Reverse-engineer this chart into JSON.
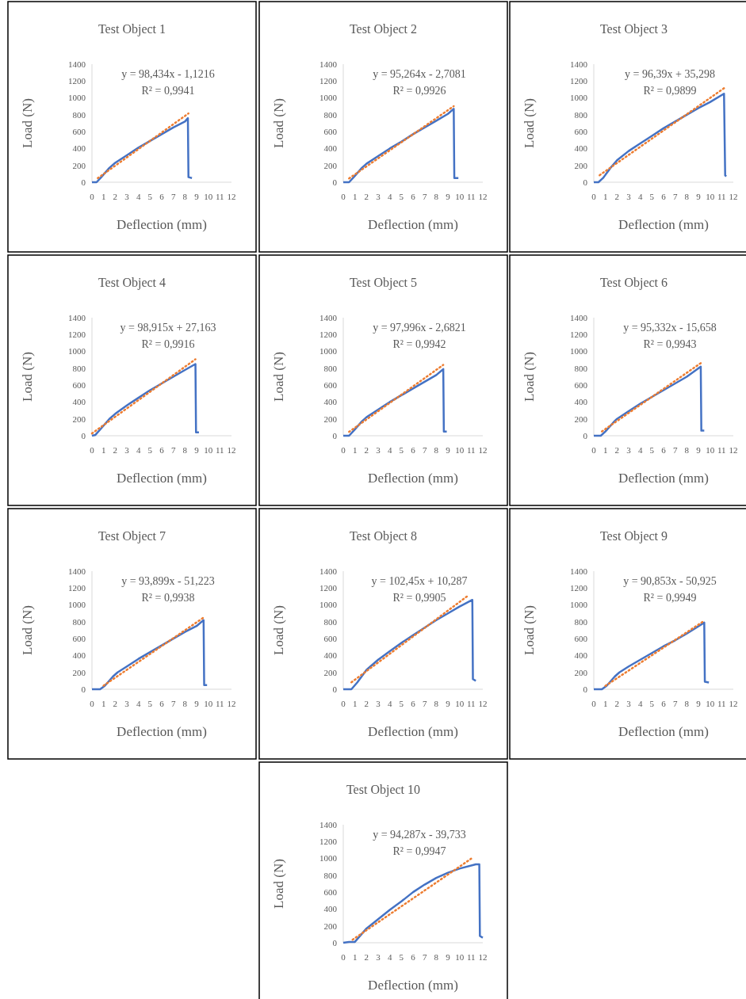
{
  "chart_data": [
    {
      "type": "line",
      "title": "Test Object 1",
      "xlabel": "Deflection (mm)",
      "ylabel": "Load (N)",
      "xlim": [
        0,
        12
      ],
      "xticks": [
        0,
        1,
        2,
        3,
        4,
        5,
        6,
        7,
        8,
        9,
        10,
        11,
        12
      ],
      "ylim": [
        0,
        1400
      ],
      "yticks": [
        0,
        200,
        400,
        600,
        800,
        1000,
        1200,
        1400
      ],
      "annotations": [
        "y = 98,434x - 1,1216",
        "R² = 0,9941"
      ],
      "series": [
        {
          "color": "#4472c4",
          "line_style": "solid",
          "x": [
            0,
            0.4,
            0.8,
            1.5,
            2,
            3,
            4,
            5,
            6,
            7,
            8,
            8.25,
            8.3,
            8.6
          ],
          "values": [
            0,
            0,
            60,
            170,
            230,
            320,
            410,
            490,
            570,
            650,
            720,
            760,
            60,
            50
          ]
        },
        {
          "color": "#ed7d31",
          "line_style": "dotted",
          "x": [
            0.5,
            8.3
          ],
          "values": [
            48,
            816
          ]
        }
      ]
    },
    {
      "type": "line",
      "title": "Test Object 2",
      "xlabel": "Deflection (mm)",
      "ylabel": "Load (N)",
      "xlim": [
        0,
        12
      ],
      "xticks": [
        0,
        1,
        2,
        3,
        4,
        5,
        6,
        7,
        8,
        9,
        10,
        11,
        12
      ],
      "ylim": [
        0,
        1400
      ],
      "yticks": [
        0,
        200,
        400,
        600,
        800,
        1000,
        1200,
        1400
      ],
      "annotations": [
        "y = 95,264x - 2,7081",
        "R² = 0,9926"
      ],
      "series": [
        {
          "color": "#4472c4",
          "line_style": "solid",
          "x": [
            0,
            0.5,
            0.9,
            1.6,
            2,
            3,
            4,
            5,
            6,
            7,
            8,
            9,
            9.5,
            9.55,
            9.9
          ],
          "values": [
            0,
            0,
            60,
            170,
            220,
            310,
            400,
            480,
            570,
            650,
            730,
            810,
            870,
            50,
            50
          ]
        },
        {
          "color": "#ed7d31",
          "line_style": "dotted",
          "x": [
            0.5,
            9.5
          ],
          "values": [
            45,
            902
          ]
        }
      ]
    },
    {
      "type": "line",
      "title": "Test Object 3",
      "xlabel": "Deflection (mm)",
      "ylabel": "Load (N)",
      "xlim": [
        0,
        12
      ],
      "xticks": [
        0,
        1,
        2,
        3,
        4,
        5,
        6,
        7,
        8,
        9,
        10,
        11,
        12
      ],
      "ylim": [
        0,
        1400
      ],
      "yticks": [
        0,
        200,
        400,
        600,
        800,
        1000,
        1200,
        1400
      ],
      "annotations": [
        "y = 96,39x + 35,298",
        "R² = 0,9899"
      ],
      "series": [
        {
          "color": "#4472c4",
          "line_style": "solid",
          "x": [
            0,
            0.4,
            0.8,
            1.5,
            2,
            3,
            4,
            5,
            6,
            7,
            8,
            9,
            10,
            11.2,
            11.3,
            11.4
          ],
          "values": [
            0,
            0,
            50,
            180,
            260,
            370,
            460,
            550,
            640,
            720,
            800,
            880,
            950,
            1050,
            80,
            70
          ]
        },
        {
          "color": "#ed7d31",
          "line_style": "dotted",
          "x": [
            0.5,
            11.2
          ],
          "values": [
            83,
            1115
          ]
        }
      ]
    },
    {
      "type": "line",
      "title": "Test Object 4",
      "xlabel": "Deflection (mm)",
      "ylabel": "Load (N)",
      "xlim": [
        0,
        12
      ],
      "xticks": [
        0,
        1,
        2,
        3,
        4,
        5,
        6,
        7,
        8,
        9,
        10,
        11,
        12
      ],
      "ylim": [
        0,
        1400
      ],
      "yticks": [
        0,
        200,
        400,
        600,
        800,
        1000,
        1200,
        1400
      ],
      "annotations": [
        "y = 98,915x + 27,163",
        "R² = 0,9916"
      ],
      "series": [
        {
          "color": "#4472c4",
          "line_style": "solid",
          "x": [
            0,
            0.3,
            1,
            1.5,
            2,
            3,
            4,
            5,
            6,
            7,
            8,
            8.9,
            8.95,
            9.2
          ],
          "values": [
            0,
            10,
            120,
            200,
            260,
            360,
            450,
            540,
            620,
            700,
            780,
            850,
            40,
            40
          ]
        },
        {
          "color": "#ed7d31",
          "line_style": "dotted",
          "x": [
            0,
            8.9
          ],
          "values": [
            27,
            907
          ]
        }
      ]
    },
    {
      "type": "line",
      "title": "Test Object 5",
      "xlabel": "Deflection (mm)",
      "ylabel": "Load (N)",
      "xlim": [
        0,
        12
      ],
      "xticks": [
        0,
        1,
        2,
        3,
        4,
        5,
        6,
        7,
        8,
        9,
        10,
        11,
        12
      ],
      "ylim": [
        0,
        1400
      ],
      "yticks": [
        0,
        200,
        400,
        600,
        800,
        1000,
        1200,
        1400
      ],
      "annotations": [
        "y = 97,996x - 2,6821",
        "R² = 0,9942"
      ],
      "series": [
        {
          "color": "#4472c4",
          "line_style": "solid",
          "x": [
            0,
            0.5,
            0.9,
            1.6,
            2,
            3,
            4,
            5,
            6,
            7,
            8,
            8.6,
            8.65,
            8.9
          ],
          "values": [
            0,
            0,
            60,
            170,
            220,
            310,
            400,
            480,
            560,
            640,
            720,
            790,
            50,
            50
          ]
        },
        {
          "color": "#ed7d31",
          "line_style": "dotted",
          "x": [
            0.5,
            8.6
          ],
          "values": [
            46,
            840
          ]
        }
      ]
    },
    {
      "type": "line",
      "title": "Test Object 6",
      "xlabel": "Deflection (mm)",
      "ylabel": "Load (N)",
      "xlim": [
        0,
        12
      ],
      "xticks": [
        0,
        1,
        2,
        3,
        4,
        5,
        6,
        7,
        8,
        9,
        10,
        11,
        12
      ],
      "ylim": [
        0,
        1400
      ],
      "yticks": [
        0,
        200,
        400,
        600,
        800,
        1000,
        1200,
        1400
      ],
      "annotations": [
        "y = 95,332x - 15,658",
        "R² = 0,9943"
      ],
      "series": [
        {
          "color": "#4472c4",
          "line_style": "solid",
          "x": [
            0,
            0.6,
            1,
            1.7,
            2,
            3,
            4,
            5,
            6,
            7,
            8,
            9.2,
            9.25,
            9.5
          ],
          "values": [
            0,
            0,
            50,
            160,
            200,
            290,
            380,
            460,
            540,
            620,
            700,
            820,
            60,
            60
          ]
        },
        {
          "color": "#ed7d31",
          "line_style": "dotted",
          "x": [
            0.7,
            9.2
          ],
          "values": [
            51,
            861
          ]
        }
      ]
    },
    {
      "type": "line",
      "title": "Test Object 7",
      "xlabel": "Deflection (mm)",
      "ylabel": "Load (N)",
      "xlim": [
        0,
        12
      ],
      "xticks": [
        0,
        1,
        2,
        3,
        4,
        5,
        6,
        7,
        8,
        9,
        10,
        11,
        12
      ],
      "ylim": [
        0,
        1400
      ],
      "yticks": [
        0,
        200,
        400,
        600,
        800,
        1000,
        1200,
        1400
      ],
      "annotations": [
        "y = 93,899x - 51,223",
        "R² = 0,9938"
      ],
      "series": [
        {
          "color": "#4472c4",
          "line_style": "solid",
          "x": [
            0,
            0.7,
            1.1,
            1.8,
            2.2,
            3,
            4,
            5,
            6,
            7,
            8,
            9,
            9.6,
            9.65,
            9.9
          ],
          "values": [
            0,
            0,
            40,
            150,
            200,
            270,
            360,
            440,
            520,
            600,
            680,
            750,
            820,
            50,
            50
          ]
        },
        {
          "color": "#ed7d31",
          "line_style": "dotted",
          "x": [
            1,
            9.6
          ],
          "values": [
            43,
            850
          ]
        }
      ]
    },
    {
      "type": "line",
      "title": "Test Object 8",
      "xlabel": "Deflection (mm)",
      "ylabel": "Load (N)",
      "xlim": [
        0,
        12
      ],
      "xticks": [
        0,
        1,
        2,
        3,
        4,
        5,
        6,
        7,
        8,
        9,
        10,
        11,
        12
      ],
      "ylim": [
        0,
        1400
      ],
      "yticks": [
        0,
        200,
        400,
        600,
        800,
        1000,
        1200,
        1400
      ],
      "annotations": [
        "y = 102,45x + 10,287",
        "R² = 0,9905"
      ],
      "series": [
        {
          "color": "#4472c4",
          "line_style": "solid",
          "x": [
            0,
            0.7,
            1.2,
            2,
            3,
            4,
            5,
            6,
            7,
            8,
            9,
            10,
            11.1,
            11.15,
            11.4
          ],
          "values": [
            0,
            0,
            80,
            230,
            350,
            450,
            550,
            640,
            730,
            820,
            900,
            980,
            1060,
            120,
            100
          ]
        },
        {
          "color": "#ed7d31",
          "line_style": "dotted",
          "x": [
            0.7,
            10.7
          ],
          "values": [
            82,
            1107
          ]
        }
      ]
    },
    {
      "type": "line",
      "title": "Test Object 9",
      "xlabel": "Deflection (mm)",
      "ylabel": "Load (N)",
      "xlim": [
        0,
        12
      ],
      "xticks": [
        0,
        1,
        2,
        3,
        4,
        5,
        6,
        7,
        8,
        9,
        10,
        11,
        12
      ],
      "ylim": [
        0,
        1400
      ],
      "yticks": [
        0,
        200,
        400,
        600,
        800,
        1000,
        1200,
        1400
      ],
      "annotations": [
        "y = 90,853x - 50,925",
        "R² = 0,9949"
      ],
      "series": [
        {
          "color": "#4472c4",
          "line_style": "solid",
          "x": [
            0,
            0.7,
            1.1,
            1.8,
            2.2,
            3,
            4,
            5,
            6,
            7,
            8,
            9.5,
            9.55,
            9.9
          ],
          "values": [
            0,
            0,
            40,
            150,
            200,
            270,
            350,
            430,
            510,
            580,
            660,
            790,
            90,
            80
          ]
        },
        {
          "color": "#ed7d31",
          "line_style": "dotted",
          "x": [
            1,
            9.5
          ],
          "values": [
            40,
            812
          ]
        }
      ]
    },
    {
      "type": "line",
      "title": "Test Object 10",
      "xlabel": "Deflection (mm)",
      "ylabel": "Load (N)",
      "xlim": [
        0,
        12
      ],
      "xticks": [
        0,
        1,
        2,
        3,
        4,
        5,
        6,
        7,
        8,
        9,
        10,
        11,
        12
      ],
      "ylim": [
        0,
        1400
      ],
      "yticks": [
        0,
        200,
        400,
        600,
        800,
        1000,
        1200,
        1400
      ],
      "annotations": [
        "y = 94,287x - 39,733",
        "R² = 0,9947"
      ],
      "series": [
        {
          "color": "#4472c4",
          "line_style": "solid",
          "x": [
            0,
            0.5,
            1,
            2,
            3,
            4,
            5,
            6,
            7,
            8,
            9,
            10,
            11.4,
            11.7,
            11.75,
            12
          ],
          "values": [
            0,
            10,
            10,
            170,
            280,
            390,
            490,
            600,
            690,
            770,
            830,
            880,
            930,
            930,
            80,
            60
          ]
        },
        {
          "color": "#ed7d31",
          "line_style": "dotted",
          "x": [
            0.8,
            11
          ],
          "values": [
            36,
            997
          ]
        }
      ]
    }
  ]
}
